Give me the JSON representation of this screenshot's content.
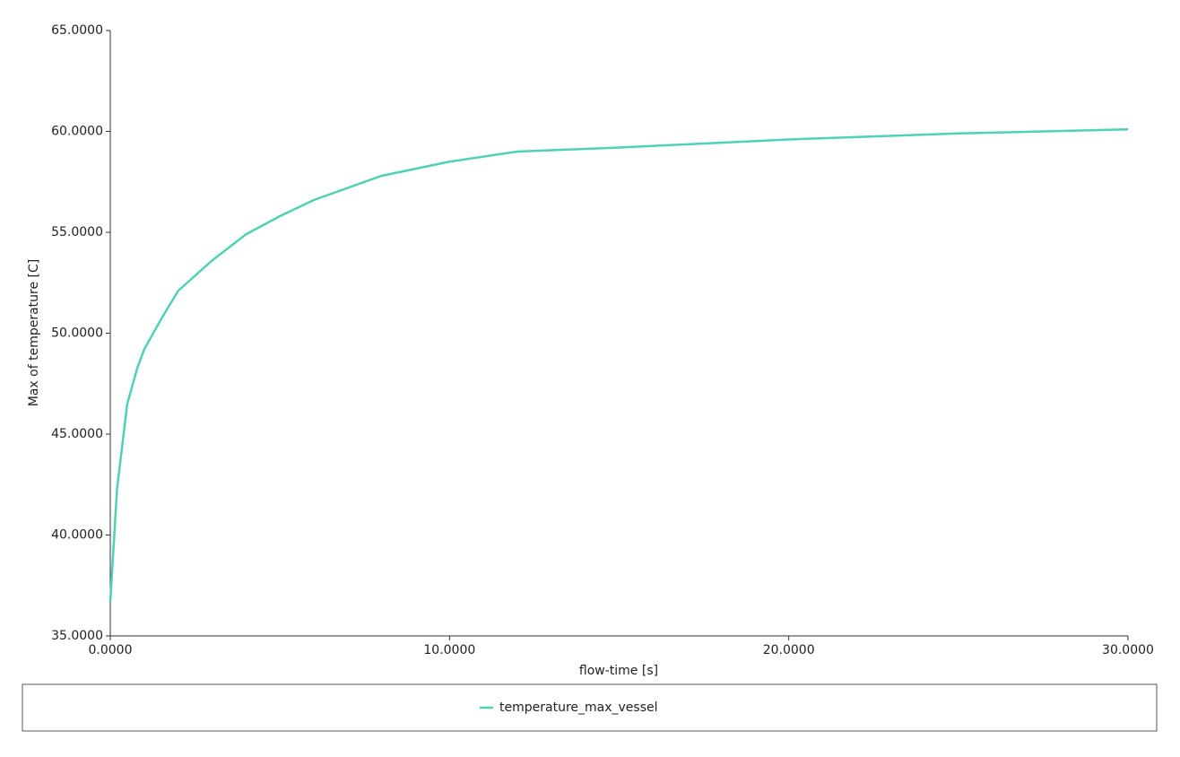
{
  "chart_data": {
    "type": "line",
    "x_label": "flow-time [s]",
    "y_label": "Max of temperature [C]",
    "x": [
      0,
      0.2,
      0.5,
      0.8,
      1.0,
      1.5,
      2.0,
      3,
      4,
      5,
      6,
      8,
      10,
      12,
      15,
      20,
      25,
      30
    ],
    "series": [
      {
        "name": "temperature_max_vessel",
        "color": "#4fd1b5",
        "values": [
          36.7,
          42.3,
          46.5,
          48.3,
          49.2,
          50.7,
          52.1,
          53.6,
          54.9,
          55.8,
          56.6,
          57.8,
          58.5,
          59.0,
          59.2,
          59.6,
          59.9,
          60.1
        ]
      }
    ],
    "xlim": [
      0,
      30
    ],
    "ylim": [
      35,
      65
    ],
    "xticks": [
      {
        "value": 0,
        "label": "0.0000"
      },
      {
        "value": 10,
        "label": "10.0000"
      },
      {
        "value": 20,
        "label": "20.0000"
      },
      {
        "value": 30,
        "label": "30.0000"
      }
    ],
    "yticks": [
      {
        "value": 35,
        "label": "35.0000"
      },
      {
        "value": 40,
        "label": "40.0000"
      },
      {
        "value": 45,
        "label": "45.0000"
      },
      {
        "value": 50,
        "label": "50.0000"
      },
      {
        "value": 55,
        "label": "55.0000"
      },
      {
        "value": 60,
        "label": "60.0000"
      },
      {
        "value": 65,
        "label": "65.0000"
      }
    ],
    "grid": false,
    "legend": "bottom"
  }
}
